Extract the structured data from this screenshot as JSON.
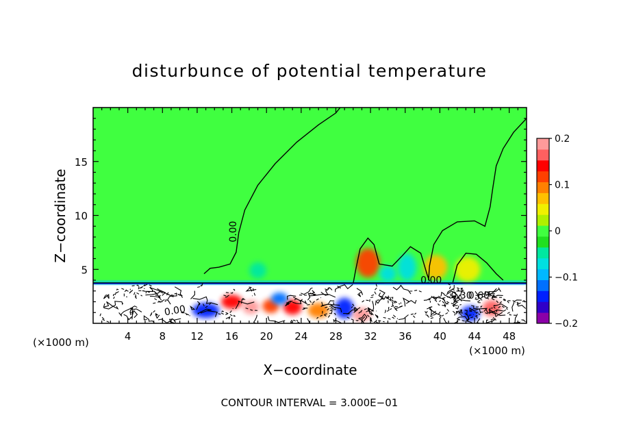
{
  "chart_data": {
    "type": "heatmap",
    "title": "disturbunce of potential temperature",
    "xlabel": "X−coordinate",
    "ylabel": "Z−coordinate",
    "x_unit_left": "(×1000 m)",
    "x_unit_right": "(×1000 m)",
    "footer": "CONTOUR INTERVAL = 3.000E−01",
    "xlim": [
      0,
      50
    ],
    "ylim": [
      0,
      20
    ],
    "x_ticks": [
      4,
      8,
      12,
      16,
      20,
      24,
      28,
      32,
      36,
      40,
      44,
      48
    ],
    "y_ticks": [
      5,
      10,
      15
    ],
    "colorbar": {
      "min": -0.2,
      "max": 0.2,
      "tick_values": [
        0.2,
        0.1,
        0,
        -0.1,
        -0.2
      ],
      "tick_labels": [
        "0.2",
        "0.1",
        "0",
        "−0.1",
        "−0.2"
      ],
      "colors": [
        "#8b00a8",
        "#3000c8",
        "#0020ff",
        "#0070ff",
        "#00b8ff",
        "#00e0e0",
        "#00e8a0",
        "#20e020",
        "#40ff40",
        "#b0f000",
        "#f0f000",
        "#ffc000",
        "#ff8000",
        "#ff4000",
        "#ff0000",
        "#ff6060",
        "#ff9a9a"
      ]
    },
    "contour_labels": [
      {
        "text": "0.00",
        "x": 16.5,
        "y": 8.5,
        "rotate": -90
      },
      {
        "text": "0.00",
        "x": 9.5,
        "y": 0.9,
        "rotate": -10
      },
      {
        "text": "0.00",
        "x": 39.0,
        "y": 3.7,
        "rotate": 0
      },
      {
        "text": "0.60",
        "x": 44.5,
        "y": 2.3,
        "rotate": 0
      },
      {
        "text": "0.30",
        "x": 42.5,
        "y": 2.3,
        "rotate": 0
      }
    ],
    "warm_blobs": [
      {
        "x": 31.7,
        "y": 5.6,
        "w": 1.8,
        "h": 2.2,
        "v": 0.11
      },
      {
        "x": 39.5,
        "y": 5.2,
        "w": 1.8,
        "h": 1.8,
        "v": 0.08
      },
      {
        "x": 43.2,
        "y": 5.0,
        "w": 2.0,
        "h": 1.8,
        "v": 0.05
      },
      {
        "x": 36.2,
        "y": 5.2,
        "w": 1.2,
        "h": 2.0,
        "v": -0.06
      },
      {
        "x": 34.0,
        "y": 4.6,
        "w": 1.0,
        "h": 1.0,
        "v": -0.07
      },
      {
        "x": 19.0,
        "y": 4.9,
        "w": 1.0,
        "h": 1.0,
        "v": -0.045
      },
      {
        "x": 16.0,
        "y": 2.0,
        "w": 1.5,
        "h": 0.8,
        "v": 0.15
      },
      {
        "x": 18.2,
        "y": 1.5,
        "w": 1.0,
        "h": 0.8,
        "v": 0.18
      },
      {
        "x": 20.5,
        "y": 1.6,
        "w": 1.0,
        "h": 0.8,
        "v": 0.12
      },
      {
        "x": 23.0,
        "y": 1.5,
        "w": 1.2,
        "h": 0.9,
        "v": 0.15
      },
      {
        "x": 26.0,
        "y": 1.2,
        "w": 1.5,
        "h": 0.9,
        "v": 0.1
      },
      {
        "x": 13.0,
        "y": 1.2,
        "w": 2.2,
        "h": 0.9,
        "v": -0.15
      },
      {
        "x": 21.5,
        "y": 2.3,
        "w": 1.0,
        "h": 0.6,
        "v": -0.12
      },
      {
        "x": 29.0,
        "y": 1.4,
        "w": 1.2,
        "h": 1.4,
        "v": -0.14
      },
      {
        "x": 31.0,
        "y": 0.8,
        "w": 1.2,
        "h": 0.8,
        "v": 0.18
      },
      {
        "x": 46.0,
        "y": 1.4,
        "w": 1.2,
        "h": 1.0,
        "v": 0.17
      },
      {
        "x": 43.5,
        "y": 0.9,
        "w": 1.2,
        "h": 0.9,
        "v": -0.13
      }
    ]
  }
}
